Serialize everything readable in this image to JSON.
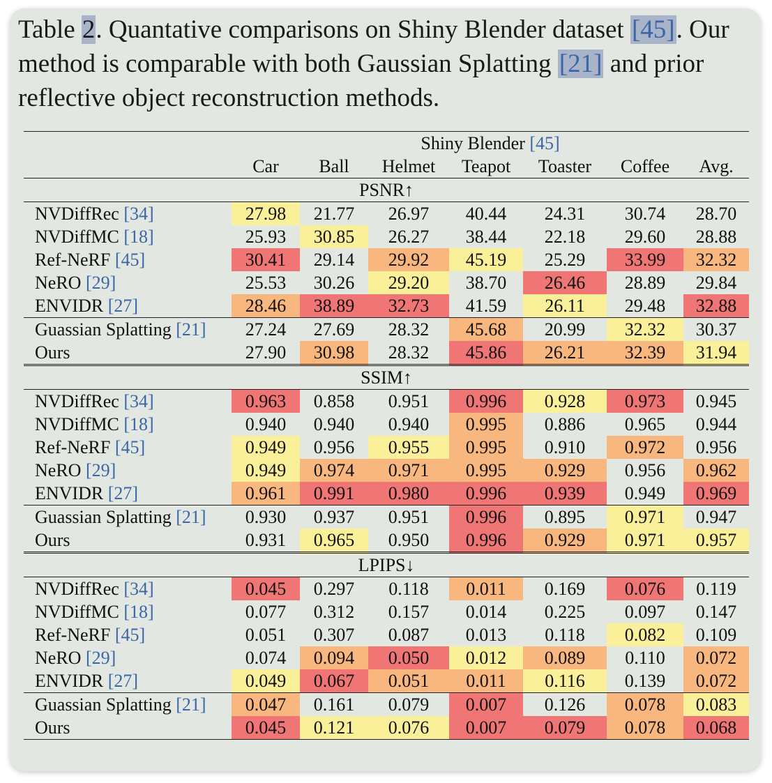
{
  "caption": {
    "prefix": "Table ",
    "table_num": "2",
    "text1": ".  Quantative comparisons on Shiny Blender dataset ",
    "cite1": "[45]",
    "text2": ". Our method is comparable with both Gaussian Splatting ",
    "cite2": "[21]",
    "text3": " and prior reflective object reconstruction methods."
  },
  "dataset": {
    "name": "Shiny Blender ",
    "cite": "[45]"
  },
  "columns": [
    "Car",
    "Ball",
    "Helmet",
    "Teapot",
    "Toaster",
    "Coffee",
    "Avg."
  ],
  "highlight_colors": {
    "first": "#f07676",
    "second": "#f8b77f",
    "third": "#fbf09a"
  },
  "sections": [
    {
      "metric": "PSNR↑",
      "rows": [
        {
          "name": "NVDiffRec ",
          "cite": "[34]",
          "values": [
            "27.98",
            "21.77",
            "26.97",
            "40.44",
            "24.31",
            "30.74",
            "28.70"
          ],
          "ranks": [
            "y",
            "",
            "",
            "",
            "",
            "",
            ""
          ]
        },
        {
          "name": "NVDiffMC ",
          "cite": "[18]",
          "values": [
            "25.93",
            "30.85",
            "26.27",
            "38.44",
            "22.18",
            "29.60",
            "28.88"
          ],
          "ranks": [
            "",
            "y",
            "",
            "",
            "",
            "",
            ""
          ]
        },
        {
          "name": "Ref-NeRF ",
          "cite": "[45]",
          "values": [
            "30.41",
            "29.14",
            "29.92",
            "45.19",
            "25.29",
            "33.99",
            "32.32"
          ],
          "ranks": [
            "r",
            "",
            "o",
            "y",
            "",
            "r",
            "o"
          ]
        },
        {
          "name": "NeRO ",
          "cite": "[29]",
          "values": [
            "25.53",
            "30.26",
            "29.20",
            "38.70",
            "26.46",
            "28.89",
            "29.84"
          ],
          "ranks": [
            "",
            "",
            "y",
            "",
            "r",
            "",
            ""
          ]
        },
        {
          "name": "ENVIDR ",
          "cite": "[27]",
          "values": [
            "28.46",
            "38.89",
            "32.73",
            "41.59",
            "26.11",
            "29.48",
            "32.88"
          ],
          "ranks": [
            "o",
            "r",
            "r",
            "",
            "y",
            "",
            "r"
          ]
        },
        {
          "name": "Guassian Splatting ",
          "cite": "[21]",
          "values": [
            "27.24",
            "27.69",
            "28.32",
            "45.68",
            "20.99",
            "32.32",
            "30.37"
          ],
          "ranks": [
            "",
            "",
            "",
            "o",
            "",
            "y",
            ""
          ]
        },
        {
          "name": "Ours",
          "cite": "",
          "values": [
            "27.90",
            "30.98",
            "28.32",
            "45.86",
            "26.21",
            "32.39",
            "31.94"
          ],
          "ranks": [
            "",
            "o",
            "",
            "r",
            "o",
            "o",
            "y"
          ]
        }
      ]
    },
    {
      "metric": "SSIM↑",
      "rows": [
        {
          "name": "NVDiffRec ",
          "cite": "[34]",
          "values": [
            "0.963",
            "0.858",
            "0.951",
            "0.996",
            "0.928",
            "0.973",
            "0.945"
          ],
          "ranks": [
            "r",
            "",
            "",
            "r",
            "y",
            "r",
            ""
          ]
        },
        {
          "name": "NVDiffMC ",
          "cite": "[18]",
          "values": [
            "0.940",
            "0.940",
            "0.940",
            "0.995",
            "0.886",
            "0.965",
            "0.944"
          ],
          "ranks": [
            "",
            "",
            "",
            "o",
            "",
            "",
            ""
          ]
        },
        {
          "name": "Ref-NeRF ",
          "cite": "[45]",
          "values": [
            "0.949",
            "0.956",
            "0.955",
            "0.995",
            "0.910",
            "0.972",
            "0.956"
          ],
          "ranks": [
            "y",
            "",
            "y",
            "o",
            "",
            "o",
            ""
          ]
        },
        {
          "name": "NeRO ",
          "cite": "[29]",
          "values": [
            "0.949",
            "0.974",
            "0.971",
            "0.995",
            "0.929",
            "0.956",
            "0.962"
          ],
          "ranks": [
            "y",
            "o",
            "o",
            "o",
            "o",
            "",
            "o"
          ]
        },
        {
          "name": "ENVIDR ",
          "cite": "[27]",
          "values": [
            "0.961",
            "0.991",
            "0.980",
            "0.996",
            "0.939",
            "0.949",
            "0.969"
          ],
          "ranks": [
            "o",
            "r",
            "r",
            "r",
            "r",
            "",
            "r"
          ]
        },
        {
          "name": "Guassian Splatting ",
          "cite": "[21]",
          "values": [
            "0.930",
            "0.937",
            "0.951",
            "0.996",
            "0.895",
            "0.971",
            "0.947"
          ],
          "ranks": [
            "",
            "",
            "",
            "r",
            "",
            "y",
            ""
          ]
        },
        {
          "name": "Ours",
          "cite": "",
          "values": [
            "0.931",
            "0.965",
            "0.950",
            "0.996",
            "0.929",
            "0.971",
            "0.957"
          ],
          "ranks": [
            "",
            "y",
            "",
            "r",
            "o",
            "y",
            "y"
          ]
        }
      ]
    },
    {
      "metric": "LPIPS↓",
      "rows": [
        {
          "name": "NVDiffRec ",
          "cite": "[34]",
          "values": [
            "0.045",
            "0.297",
            "0.118",
            "0.011",
            "0.169",
            "0.076",
            "0.119"
          ],
          "ranks": [
            "r",
            "",
            "",
            "o",
            "",
            "r",
            ""
          ]
        },
        {
          "name": "NVDiffMC ",
          "cite": "[18]",
          "values": [
            "0.077",
            "0.312",
            "0.157",
            "0.014",
            "0.225",
            "0.097",
            "0.147"
          ],
          "ranks": [
            "",
            "",
            "",
            "",
            "",
            "",
            ""
          ]
        },
        {
          "name": "Ref-NeRF ",
          "cite": "[45]",
          "values": [
            "0.051",
            "0.307",
            "0.087",
            "0.013",
            "0.118",
            "0.082",
            "0.109"
          ],
          "ranks": [
            "",
            "",
            "",
            "",
            "",
            "y",
            ""
          ]
        },
        {
          "name": "NeRO ",
          "cite": "[29]",
          "values": [
            "0.074",
            "0.094",
            "0.050",
            "0.012",
            "0.089",
            "0.110",
            "0.072"
          ],
          "ranks": [
            "",
            "o",
            "r",
            "y",
            "o",
            "",
            "o"
          ]
        },
        {
          "name": "ENVIDR ",
          "cite": "[27]",
          "values": [
            "0.049",
            "0.067",
            "0.051",
            "0.011",
            "0.116",
            "0.139",
            "0.072"
          ],
          "ranks": [
            "y",
            "r",
            "o",
            "o",
            "y",
            "",
            "o"
          ]
        },
        {
          "name": "Guassian Splatting ",
          "cite": "[21]",
          "values": [
            "0.047",
            "0.161",
            "0.079",
            "0.007",
            "0.126",
            "0.078",
            "0.083"
          ],
          "ranks": [
            "o",
            "",
            "",
            "r",
            "",
            "o",
            "y"
          ]
        },
        {
          "name": "Ours",
          "cite": "",
          "values": [
            "0.045",
            "0.121",
            "0.076",
            "0.007",
            "0.079",
            "0.078",
            "0.068"
          ],
          "ranks": [
            "r",
            "y",
            "y",
            "r",
            "r",
            "o",
            "r"
          ]
        }
      ]
    }
  ]
}
